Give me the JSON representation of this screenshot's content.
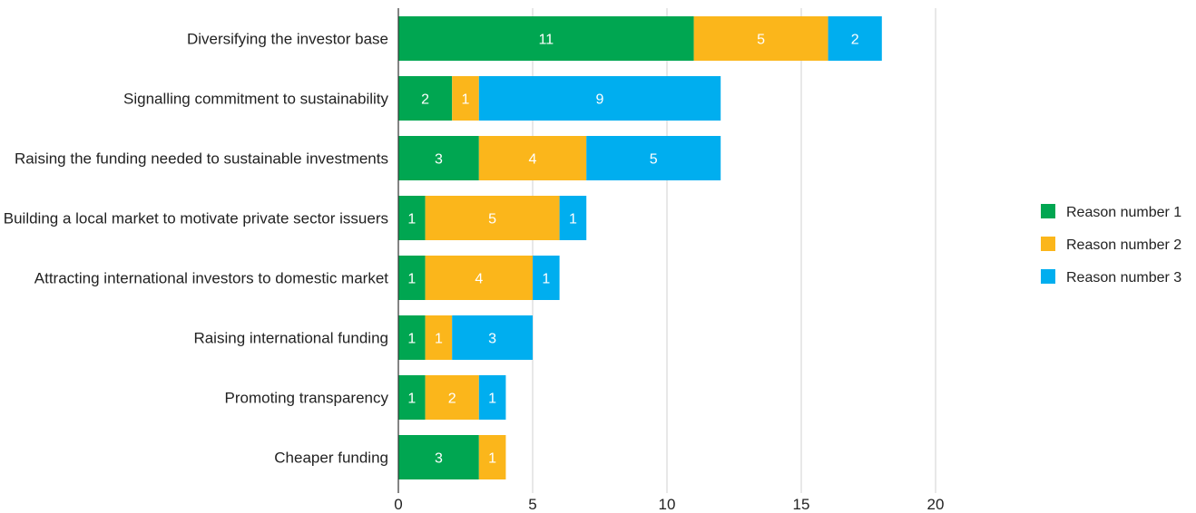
{
  "chart_data": {
    "type": "bar",
    "orientation": "horizontal",
    "stacked": true,
    "categories": [
      "Diversifying the investor base",
      "Signalling commitment to sustainability",
      "Raising the funding needed to sustainable investments",
      "Building a local market to motivate private sector issuers",
      "Attracting international investors to domestic market",
      "Raising international funding",
      "Promoting transparency",
      "Cheaper funding"
    ],
    "series": [
      {
        "name": "Reason number 1",
        "color": "#00a651",
        "values": [
          11,
          2,
          3,
          1,
          1,
          1,
          1,
          3
        ]
      },
      {
        "name": "Reason number 2",
        "color": "#fbb61b",
        "values": [
          5,
          1,
          4,
          5,
          4,
          1,
          2,
          1
        ]
      },
      {
        "name": "Reason number 3",
        "color": "#00aeef",
        "values": [
          2,
          9,
          5,
          1,
          1,
          3,
          1,
          0
        ]
      }
    ],
    "xlim": [
      0,
      20
    ],
    "xticks": [
      0,
      5,
      10,
      15,
      20
    ],
    "grid": "vertical",
    "legend_position": "right"
  }
}
